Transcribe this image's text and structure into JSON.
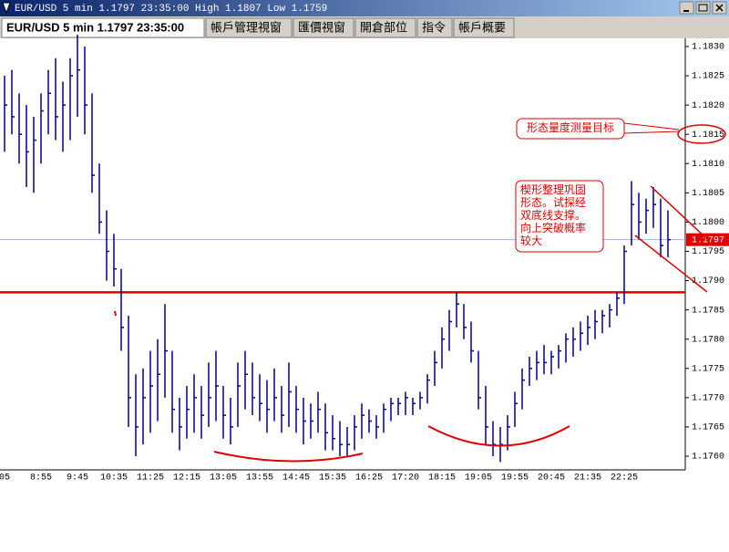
{
  "window": {
    "title": "EUR/USD 5 min 1.1797 23:35:00 High 1.1807 Low 1.1759"
  },
  "tabs": [
    "EUR/USD 5 min 1.1797 23:35:00",
    "帳戶管理視窗",
    "匯價視窗",
    "開倉部位",
    "指令",
    "帳戶概要"
  ],
  "chart_data": {
    "type": "ohlc_bar",
    "color": "#000080",
    "categories": [
      "05",
      null,
      null,
      null,
      null,
      "8:55",
      null,
      null,
      null,
      null,
      "9:45",
      null,
      null,
      null,
      null,
      "10:35",
      null,
      null,
      null,
      null,
      "11:25",
      null,
      null,
      null,
      null,
      "12:15",
      null,
      null,
      null,
      null,
      "13:05",
      null,
      null,
      null,
      null,
      "13:55",
      null,
      null,
      null,
      null,
      "14:45",
      null,
      null,
      null,
      null,
      "15:35",
      null,
      null,
      null,
      null,
      "16:25",
      null,
      null,
      null,
      null,
      "17:20",
      null,
      null,
      null,
      null,
      "18:15",
      null,
      null,
      null,
      null,
      "19:05",
      null,
      null,
      null,
      null,
      "19:55",
      null,
      null,
      null,
      null,
      "20:45",
      null,
      null,
      null,
      null,
      "21:35",
      null,
      null,
      null,
      null,
      "22:25",
      null,
      null,
      null,
      null,
      null,
      null
    ],
    "high": [
      1.1825,
      1.1826,
      1.1822,
      1.182,
      1.1818,
      1.1822,
      1.1826,
      1.1828,
      1.1824,
      1.1828,
      1.1832,
      1.183,
      1.1822,
      1.181,
      1.1802,
      1.1798,
      1.1792,
      1.1784,
      1.1774,
      1.1775,
      1.1778,
      1.178,
      1.1786,
      1.1778,
      1.177,
      1.1772,
      1.1774,
      1.1772,
      1.1776,
      1.1778,
      1.1772,
      1.177,
      1.1776,
      1.1778,
      1.1776,
      1.1774,
      1.1773,
      1.1775,
      1.1772,
      1.1776,
      1.1772,
      1.177,
      1.1769,
      1.1771,
      1.1769,
      1.1767,
      1.1766,
      1.1765,
      1.1767,
      1.1769,
      1.1768,
      1.1767,
      1.1769,
      1.177,
      1.177,
      1.1771,
      1.177,
      1.1771,
      1.1774,
      1.1778,
      1.1782,
      1.1785,
      1.1788,
      1.1786,
      1.1783,
      1.1778,
      1.1772,
      1.1766,
      1.1765,
      1.1767,
      1.1771,
      1.1775,
      1.1777,
      1.1778,
      1.1779,
      1.1778,
      1.1779,
      1.1781,
      1.1782,
      1.1783,
      1.1784,
      1.1785,
      1.1785,
      1.1786,
      1.1788,
      1.1796,
      1.1807,
      1.1805,
      1.1804,
      1.1806,
      1.1804,
      1.1802
    ],
    "low": [
      1.1812,
      1.1815,
      1.181,
      1.1806,
      1.1805,
      1.181,
      1.1815,
      1.1814,
      1.1812,
      1.1814,
      1.1818,
      1.1815,
      1.1805,
      1.1798,
      1.179,
      1.1789,
      1.1778,
      1.1765,
      1.176,
      1.1762,
      1.1764,
      1.1766,
      1.177,
      1.1764,
      1.1761,
      1.1763,
      1.1764,
      1.1763,
      1.1765,
      1.1766,
      1.1763,
      1.1762,
      1.1765,
      1.1768,
      1.1767,
      1.1766,
      1.1764,
      1.1766,
      1.1764,
      1.1765,
      1.1764,
      1.1762,
      1.1763,
      1.1764,
      1.1761,
      1.1761,
      1.176,
      1.176,
      1.1761,
      1.1763,
      1.1764,
      1.1763,
      1.1764,
      1.1766,
      1.1767,
      1.1767,
      1.1767,
      1.1768,
      1.1769,
      1.1772,
      1.1775,
      1.1778,
      1.1782,
      1.178,
      1.1776,
      1.1768,
      1.1762,
      1.176,
      1.1759,
      1.1761,
      1.1765,
      1.1768,
      1.1772,
      1.1773,
      1.1774,
      1.1774,
      1.1775,
      1.1776,
      1.1777,
      1.1778,
      1.1779,
      1.178,
      1.1781,
      1.1782,
      1.1784,
      1.1786,
      1.1796,
      1.1797,
      1.1798,
      1.1799,
      1.1794,
      1.1794
    ],
    "close": [
      1.182,
      1.1818,
      1.1815,
      1.1812,
      1.1814,
      1.1819,
      1.1822,
      1.1818,
      1.182,
      1.1825,
      1.1826,
      1.182,
      1.1808,
      1.18,
      1.1795,
      1.1792,
      1.1782,
      1.177,
      1.1765,
      1.177,
      1.1772,
      1.1774,
      1.1778,
      1.1768,
      1.1765,
      1.1768,
      1.177,
      1.1767,
      1.177,
      1.1772,
      1.1767,
      1.1765,
      1.1772,
      1.1774,
      1.177,
      1.1769,
      1.1768,
      1.177,
      1.1767,
      1.1771,
      1.1768,
      1.1766,
      1.1766,
      1.1768,
      1.1764,
      1.1763,
      1.1762,
      1.1762,
      1.1765,
      1.1767,
      1.1766,
      1.1765,
      1.1768,
      1.1769,
      1.1769,
      1.177,
      1.1769,
      1.177,
      1.1773,
      1.1776,
      1.178,
      1.1783,
      1.1786,
      1.1782,
      1.1778,
      1.177,
      1.1765,
      1.1762,
      1.1762,
      1.1765,
      1.1769,
      1.1773,
      1.1775,
      1.1776,
      1.1776,
      1.1777,
      1.1778,
      1.178,
      1.178,
      1.1781,
      1.1782,
      1.1783,
      1.1784,
      1.1785,
      1.1787,
      1.1795,
      1.1803,
      1.18,
      1.1802,
      1.1803,
      1.1796,
      1.1797
    ],
    "ylim": [
      1.175766,
      1.18314
    ],
    "yticks": [
      {
        "value": 1.176,
        "label": "1.1760"
      },
      {
        "value": 1.1765,
        "label": "1.1765"
      },
      {
        "value": 1.177,
        "label": "1.1770"
      },
      {
        "value": 1.1775,
        "label": "1.1775"
      },
      {
        "value": 1.178,
        "label": "1.1780"
      },
      {
        "value": 1.1785,
        "label": "1.1785"
      },
      {
        "value": 1.179,
        "label": "1.1790"
      },
      {
        "value": 1.1795,
        "label": "1.1795"
      },
      {
        "value": 1.18,
        "label": "1.1800"
      },
      {
        "value": 1.1805,
        "label": "1.1805"
      },
      {
        "value": 1.181,
        "label": "1.1810"
      },
      {
        "value": 1.1815,
        "label": "1.1815"
      },
      {
        "value": 1.182,
        "label": "1.1820"
      },
      {
        "value": 1.1825,
        "label": "1.1825"
      },
      {
        "value": 1.183,
        "label": "1.1830"
      }
    ],
    "hlines": [
      {
        "value": 1.1797,
        "color": "#9bb5d6"
      },
      {
        "value": 1.1788,
        "color": "#e00000"
      }
    ],
    "annotations": {
      "target": "形态量度测量目标",
      "wedge": [
        "楔形整理巩固",
        "形态。试探经",
        "双底线支撑。",
        "向上突破概率",
        "较大"
      ]
    }
  }
}
